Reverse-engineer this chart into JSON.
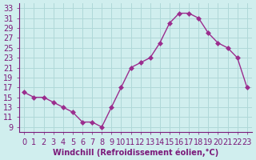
{
  "x": [
    0,
    1,
    2,
    3,
    4,
    5,
    6,
    7,
    8,
    9,
    10,
    11,
    12,
    13,
    14,
    15,
    16,
    17,
    18,
    19,
    20,
    21,
    22,
    23
  ],
  "y": [
    16,
    15,
    15,
    14,
    13,
    12,
    10,
    10,
    9,
    13,
    17,
    21,
    22,
    23,
    26,
    30,
    32,
    32,
    31,
    28,
    26,
    25,
    23,
    17
  ],
  "line_color": "#9b2d8e",
  "marker": "D",
  "marker_size": 3,
  "bg_color": "#d0eeee",
  "grid_color": "#b0d8d8",
  "xlabel": "Windchill (Refroidissement éolien,°C)",
  "xlim": [
    -0.5,
    23.5
  ],
  "ylim": [
    8,
    34
  ],
  "yticks": [
    9,
    11,
    13,
    15,
    17,
    19,
    21,
    23,
    25,
    27,
    29,
    31,
    33
  ],
  "xticks": [
    0,
    1,
    2,
    3,
    4,
    5,
    6,
    7,
    8,
    9,
    10,
    11,
    12,
    13,
    14,
    15,
    16,
    17,
    18,
    19,
    20,
    21,
    22,
    23
  ],
  "tick_color": "#7b1a7a",
  "label_fontsize": 7,
  "axis_fontsize": 7
}
